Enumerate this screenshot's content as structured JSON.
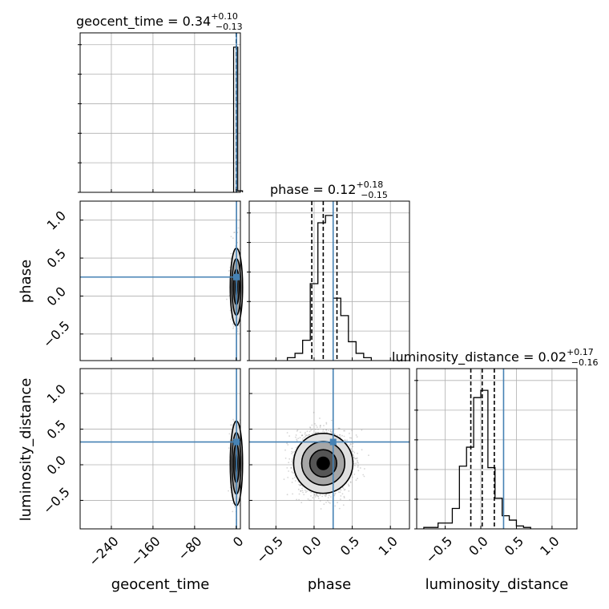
{
  "chart_data": {
    "type": "corner",
    "parameters": [
      "geocent_time",
      "phase",
      "luminosity_distance"
    ],
    "axis_labels": {
      "geocent_time": "geocent_time",
      "phase": "phase",
      "luminosity_distance": "luminosity_distance"
    },
    "titles": [
      {
        "param": "geocent_time",
        "text": "geocent_time = 0.34",
        "median": 0.34,
        "plus": "+0.10",
        "minus": "−0.13"
      },
      {
        "param": "phase",
        "text": "phase = 0.12",
        "median": 0.12,
        "plus": "+0.18",
        "minus": "−0.15"
      },
      {
        "param": "luminosity_distance",
        "text": "luminosity_distance = 0.02",
        "median": 0.02,
        "plus": "+0.17",
        "minus": "−0.16"
      }
    ],
    "ranges": {
      "geocent_time": [
        -300,
        8
      ],
      "phase": [
        -0.85,
        1.25
      ],
      "luminosity_distance": [
        -0.9,
        1.35
      ]
    },
    "ticks": {
      "geocent_time": [
        -240,
        -160,
        -80,
        0
      ],
      "phase": [
        -0.5,
        0.0,
        0.5,
        1.0
      ],
      "luminosity_distance": [
        -0.5,
        0.0,
        0.5,
        1.0
      ]
    },
    "tick_labels": {
      "geocent_time": [
        "−240",
        "−160",
        "−80",
        "0"
      ],
      "phase": [
        "−0.5",
        "0.0",
        "0.5",
        "1.0"
      ],
      "luminosity_distance": [
        "−0.5",
        "0.0",
        "0.5",
        "1.0"
      ]
    },
    "truths": {
      "geocent_time": 0.5,
      "phase": 0.25,
      "luminosity_distance": 0.32
    },
    "quantiles": {
      "geocent_time": [
        0.21,
        0.34,
        0.44
      ],
      "phase": [
        -0.03,
        0.12,
        0.3
      ],
      "luminosity_distance": [
        -0.14,
        0.02,
        0.19
      ]
    },
    "histograms": {
      "geocent_time": {
        "bins": [
          [
            -5,
            3,
            1.0
          ],
          [
            3,
            12,
            0.01
          ]
        ]
      },
      "phase": {
        "bins": [
          [
            -0.35,
            -0.25,
            0.02
          ],
          [
            -0.25,
            -0.15,
            0.05
          ],
          [
            -0.15,
            -0.05,
            0.14
          ],
          [
            -0.05,
            0.05,
            0.53
          ],
          [
            0.05,
            0.15,
            0.95
          ],
          [
            0.15,
            0.25,
            1.0
          ],
          [
            0.25,
            0.35,
            0.43
          ],
          [
            0.35,
            0.45,
            0.31
          ],
          [
            0.45,
            0.55,
            0.13
          ],
          [
            0.55,
            0.65,
            0.05
          ],
          [
            0.65,
            0.75,
            0.02
          ]
        ]
      },
      "luminosity_distance": {
        "bins": [
          [
            -0.8,
            -0.6,
            0.01
          ],
          [
            -0.6,
            -0.4,
            0.04
          ],
          [
            -0.4,
            -0.3,
            0.14
          ],
          [
            -0.3,
            -0.2,
            0.43
          ],
          [
            -0.2,
            -0.1,
            0.56
          ],
          [
            -0.1,
            0.0,
            0.9
          ],
          [
            0.0,
            0.1,
            0.95
          ],
          [
            0.1,
            0.2,
            0.42
          ],
          [
            0.2,
            0.3,
            0.21
          ],
          [
            0.3,
            0.4,
            0.09
          ],
          [
            0.4,
            0.5,
            0.06
          ],
          [
            0.5,
            0.6,
            0.02
          ],
          [
            0.6,
            0.7,
            0.01
          ]
        ]
      }
    },
    "grid": true,
    "truth_color": "#4682b4",
    "line_color": "#000000"
  }
}
